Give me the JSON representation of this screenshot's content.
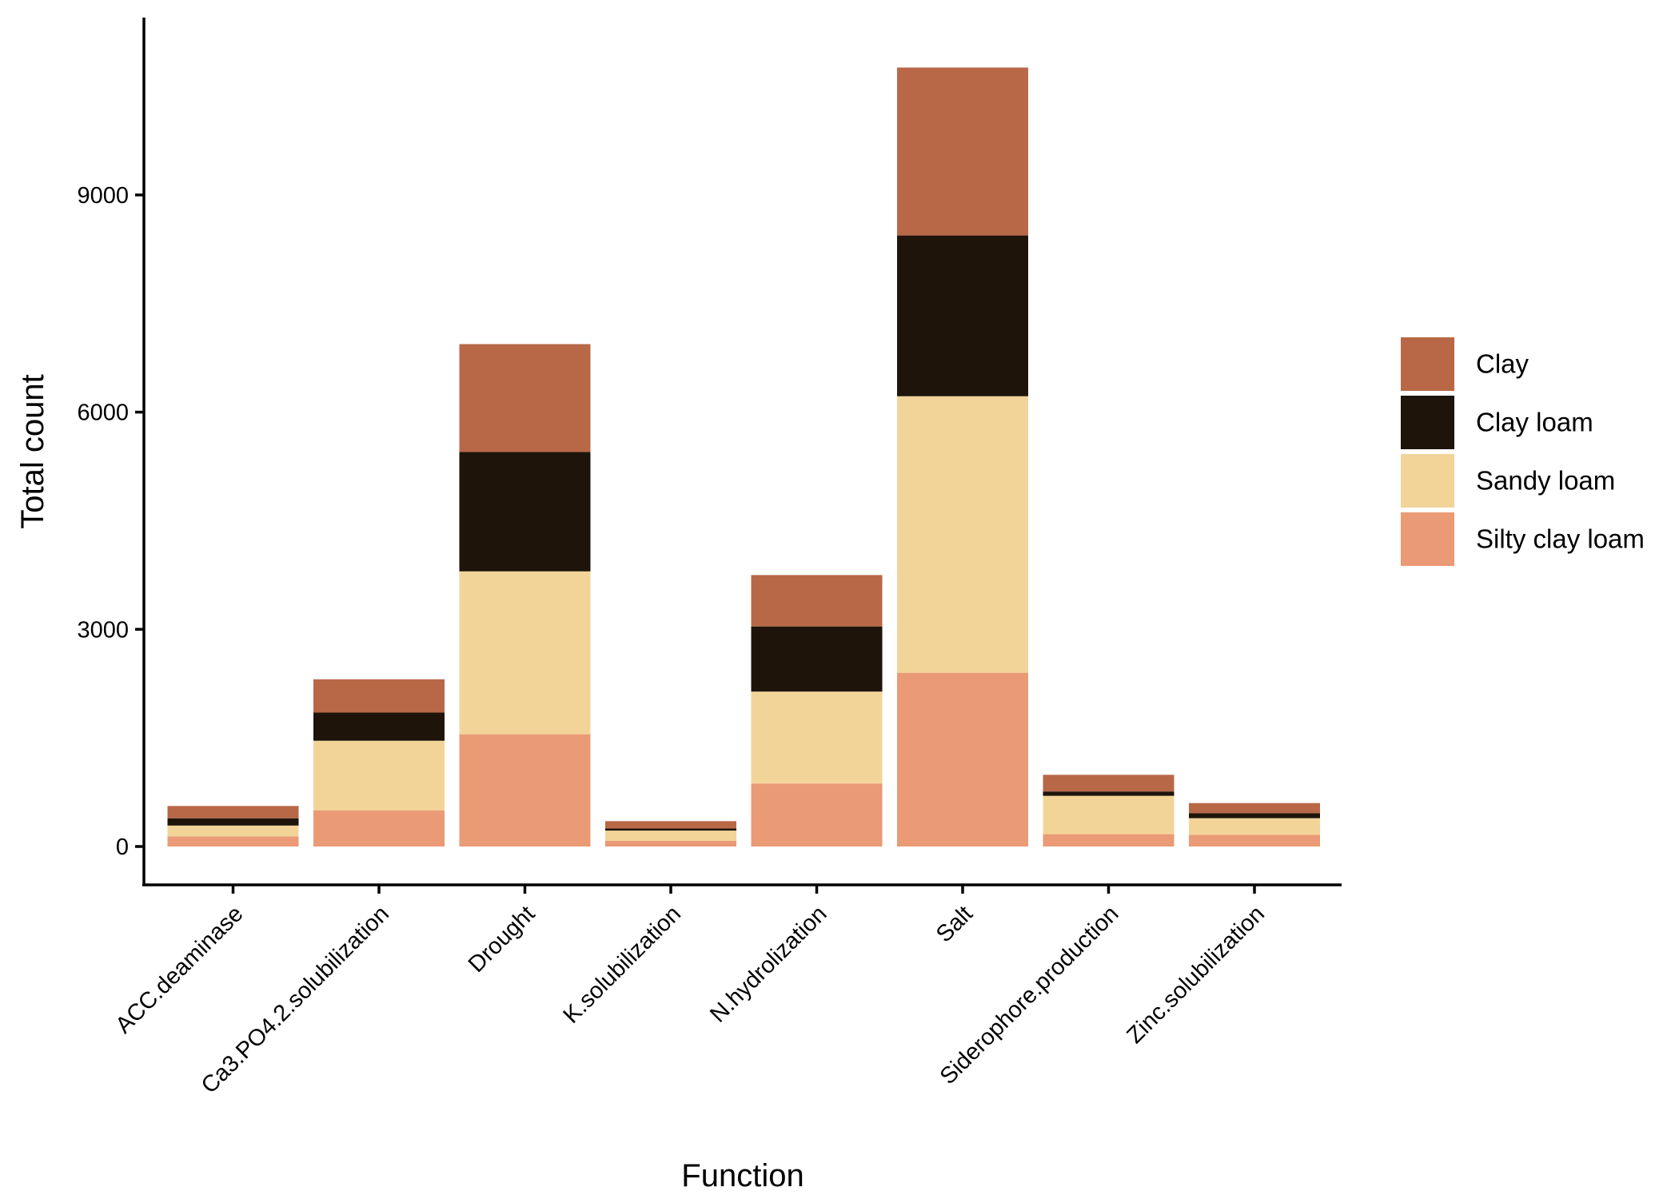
{
  "chart_data": {
    "type": "bar",
    "stacked": true,
    "title": "",
    "xlabel": "Function",
    "ylabel": "Total count",
    "ylim": [
      -530,
      11450
    ],
    "yticks": [
      0,
      3000,
      6000,
      9000
    ],
    "grid": false,
    "legend_position": "right",
    "categories": [
      "ACC.deaminase",
      "Ca3.PO4.2.solubilization",
      "Drought",
      "K.solubilization",
      "N.hydrolization",
      "Salt",
      "Siderophore.production",
      "Zinc.solubilization"
    ],
    "series": [
      {
        "name": "Silty clay loam",
        "color": "#EA9A75",
        "values": [
          140,
          500,
          1550,
          80,
          870,
          2400,
          170,
          160
        ]
      },
      {
        "name": "Sandy loam",
        "color": "#F3D498",
        "values": [
          150,
          960,
          2250,
          140,
          1270,
          3820,
          530,
          230
        ]
      },
      {
        "name": "Clay loam",
        "color": "#1E140A",
        "values": [
          100,
          390,
          1650,
          30,
          900,
          2220,
          60,
          70
        ]
      },
      {
        "name": "Clay",
        "color": "#B86847",
        "values": [
          170,
          460,
          1490,
          100,
          710,
          2320,
          230,
          140
        ]
      }
    ]
  }
}
